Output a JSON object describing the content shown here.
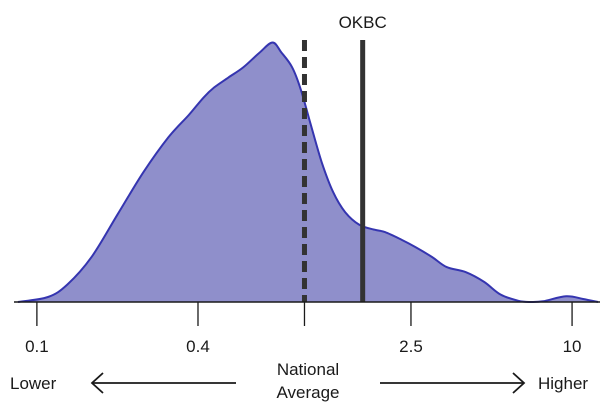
{
  "chart_data": {
    "type": "area",
    "x_scale": "log",
    "xlim": [
      0.085,
      12.5
    ],
    "ylim": [
      0,
      1.05
    ],
    "ticks": [
      {
        "value": 0.1,
        "label": "0.1"
      },
      {
        "value": 0.4,
        "label": "0.4"
      },
      {
        "value": 1,
        "label": ""
      },
      {
        "value": 2.5,
        "label": "2.5"
      },
      {
        "value": 10,
        "label": "10"
      }
    ],
    "density": [
      [
        0.085,
        0.0
      ],
      [
        0.11,
        0.02
      ],
      [
        0.13,
        0.07
      ],
      [
        0.16,
        0.18
      ],
      [
        0.2,
        0.35
      ],
      [
        0.25,
        0.52
      ],
      [
        0.31,
        0.66
      ],
      [
        0.37,
        0.75
      ],
      [
        0.42,
        0.82
      ],
      [
        0.46,
        0.86
      ],
      [
        0.52,
        0.9
      ],
      [
        0.59,
        0.94
      ],
      [
        0.68,
        1.0
      ],
      [
        0.76,
        1.04
      ],
      [
        0.82,
        1.0
      ],
      [
        0.9,
        0.94
      ],
      [
        0.97,
        0.85
      ],
      [
        1.05,
        0.72
      ],
      [
        1.16,
        0.56
      ],
      [
        1.28,
        0.44
      ],
      [
        1.42,
        0.36
      ],
      [
        1.6,
        0.31
      ],
      [
        1.82,
        0.29
      ],
      [
        2.0,
        0.28
      ],
      [
        2.3,
        0.25
      ],
      [
        2.6,
        0.22
      ],
      [
        3.0,
        0.18
      ],
      [
        3.4,
        0.14
      ],
      [
        4.0,
        0.12
      ],
      [
        4.7,
        0.08
      ],
      [
        5.4,
        0.03
      ],
      [
        6.3,
        0.005
      ],
      [
        7.0,
        0.0
      ],
      [
        7.8,
        0.003
      ],
      [
        9.5,
        0.023
      ],
      [
        11.0,
        0.012
      ],
      [
        12.5,
        0.0
      ]
    ],
    "fill_color": "#8f8fcb",
    "line_color": "#3535b0",
    "reference_lines": [
      {
        "name": "National Average",
        "x": 1.0,
        "style": "dashed"
      },
      {
        "name": "OKBC",
        "x": 1.65,
        "style": "solid",
        "label": "OKBC"
      }
    ],
    "annotations": {
      "left": "Lower",
      "right": "Higher",
      "middle_line1": "National",
      "middle_line2": "Average"
    },
    "grid": false
  }
}
